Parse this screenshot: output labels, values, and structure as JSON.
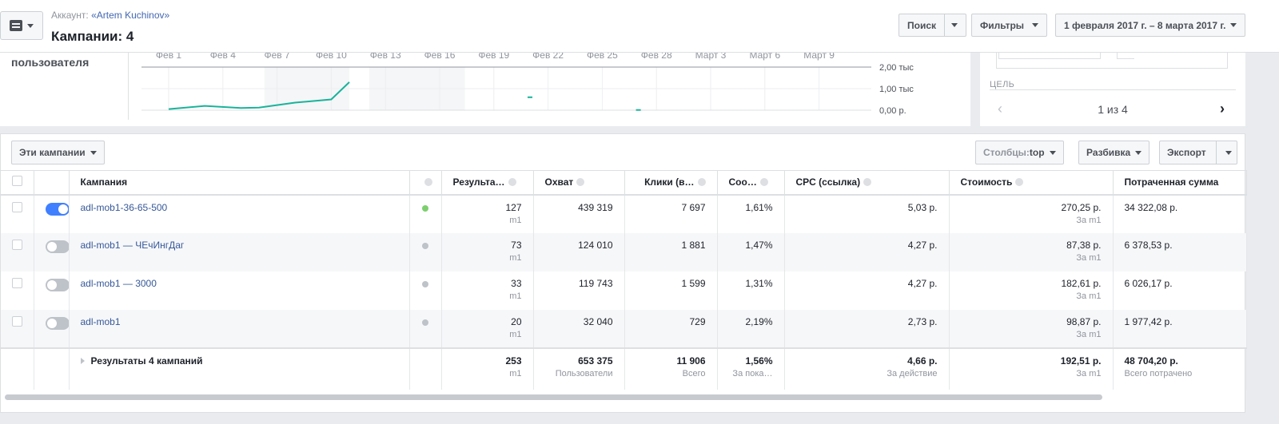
{
  "header": {
    "account_prefix": "Аккаунт: ",
    "account_name": "«Artem Kuchinov»",
    "title": "Кампании: 4",
    "search_label": "Поиск",
    "filters_label": "Фильтры",
    "date_range": "1 февраля 2017 г. – 8 марта 2017 г.",
    "menu_icon": "document-icon"
  },
  "chart": {
    "side_label": "пользователя",
    "y_ticks": [
      "2,00 тыс",
      "1,00 тыс",
      "0,00 р."
    ],
    "chart_data": {
      "type": "line",
      "x_ticks": [
        "Фев 1",
        "Фев 4",
        "Фев 7",
        "Фев 10",
        "Фев 13",
        "Фев 16",
        "Фев 19",
        "Фев 22",
        "Фев 25",
        "Фев 28",
        "Март 3",
        "Март 6",
        "Март 9"
      ],
      "ylim": [
        0,
        2000
      ],
      "series_color": "#19b39b",
      "x": [
        0,
        2,
        4,
        5,
        7,
        9,
        10,
        20,
        26
      ],
      "values": [
        50,
        200,
        100,
        120,
        350,
        500,
        1300,
        600,
        10
      ]
    }
  },
  "goal_panel": {
    "label": "ЦЕЛЬ",
    "pager": "1 из 4",
    "prev_icon": "chevron-left-icon",
    "next_icon": "chevron-right-icon"
  },
  "toolbar": {
    "these_campaigns": "Эти кампании",
    "columns_label": "Столбцы: ",
    "columns_value": "top",
    "breakdown": "Разбивка",
    "export": "Экспорт"
  },
  "table": {
    "headers": {
      "campaign": "Кампания",
      "results": "Результа…",
      "reach": "Охват",
      "clicks": "Клики (в…",
      "ctr": "Соо…",
      "cpc": "CPC (ссылка)",
      "cost": "Стоимость",
      "spent": "Потраченная сумма"
    },
    "rows": [
      {
        "name": "adl-mob1-36-65-500",
        "active": true,
        "results": "127",
        "results_sub": "m1",
        "reach": "439 319",
        "clicks": "7 697",
        "ctr": "1,61%",
        "cpc": "5,03 р.",
        "cost": "270,25 р.",
        "cost_sub": "За m1",
        "spent": "34 322,08 р."
      },
      {
        "name": "adl-mob1 — ЧЕчИнгДаг",
        "active": false,
        "results": "73",
        "results_sub": "m1",
        "reach": "124 010",
        "clicks": "1 881",
        "ctr": "1,47%",
        "cpc": "4,27 р.",
        "cost": "87,38 р.",
        "cost_sub": "За m1",
        "spent": "6 378,53 р."
      },
      {
        "name": "adl-mob1 — 3000",
        "active": false,
        "results": "33",
        "results_sub": "m1",
        "reach": "119 743",
        "clicks": "1 599",
        "ctr": "1,31%",
        "cpc": "4,27 р.",
        "cost": "182,61 р.",
        "cost_sub": "За m1",
        "spent": "6 026,17 р."
      },
      {
        "name": "adl-mob1",
        "active": false,
        "results": "20",
        "results_sub": "m1",
        "reach": "32 040",
        "clicks": "729",
        "ctr": "2,19%",
        "cpc": "2,73 р.",
        "cost": "98,87 р.",
        "cost_sub": "За m1",
        "spent": "1 977,42 р."
      }
    ],
    "summary": {
      "label": "Результаты 4 кампаний",
      "results": "253",
      "results_sub": "m1",
      "reach": "653 375",
      "reach_sub": "Пользователи",
      "clicks": "11 906",
      "clicks_sub": "Всего",
      "ctr": "1,56%",
      "ctr_sub": "За пока…",
      "cpc": "4,66 р.",
      "cpc_sub": "За действие",
      "cost": "192,51 р.",
      "cost_sub": "За m1",
      "spent": "48 704,20 р.",
      "spent_sub": "Всего потрачено"
    }
  }
}
